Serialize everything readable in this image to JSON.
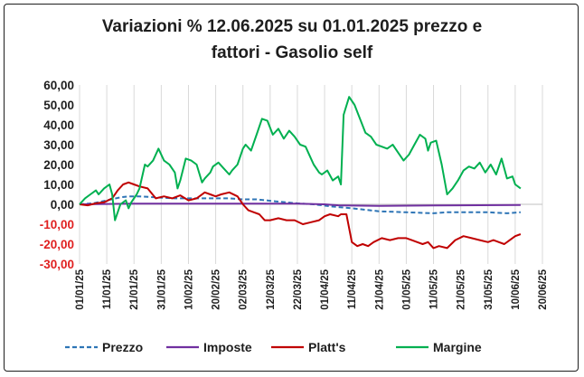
{
  "chart_data": {
    "type": "line",
    "title_line1": "Variazioni % 12.06.2025 su 01.01.2025 prezzo e",
    "title_line2": "fattori - Gasolio self",
    "ylim": [
      -30,
      60
    ],
    "yticks": [
      "60,00",
      "50,00",
      "40,00",
      "30,00",
      "20,00",
      "10,00",
      "0,00",
      "-10,00",
      "-20,00",
      "-30,00"
    ],
    "ytick_values": [
      60,
      50,
      40,
      30,
      20,
      10,
      0,
      -10,
      -20,
      -30
    ],
    "xlim": [
      0,
      170
    ],
    "xticks": [
      "01/01/25",
      "11/01/25",
      "21/01/25",
      "31/01/25",
      "10/02/25",
      "20/02/25",
      "02/03/25",
      "12/03/25",
      "22/03/25",
      "01/04/25",
      "11/04/25",
      "21/04/25",
      "01/05/25",
      "11/05/25",
      "21/05/25",
      "31/05/25",
      "10/06/25",
      "20/06/25"
    ],
    "xtick_days": [
      0,
      10,
      20,
      30,
      40,
      50,
      60,
      70,
      80,
      90,
      100,
      110,
      120,
      130,
      140,
      150,
      160,
      170
    ],
    "grid": "vertical",
    "legend_position": "bottom",
    "negative_tick_color": "#e02020",
    "series": [
      {
        "name": "Prezzo",
        "color": "#2e75b6",
        "style": "dashed",
        "x": [
          0,
          5,
          10,
          15,
          18,
          22,
          28,
          35,
          45,
          55,
          60,
          65,
          72,
          80,
          86,
          92,
          100,
          110,
          120,
          130,
          135,
          142,
          150,
          157,
          162
        ],
        "y": [
          0,
          0.5,
          2,
          3.5,
          4,
          4,
          3.5,
          3,
          3,
          3,
          2.5,
          2.5,
          1.5,
          0.5,
          0,
          -1,
          -2,
          -3.5,
          -4,
          -4.5,
          -4,
          -4,
          -4,
          -4.5,
          -4
        ]
      },
      {
        "name": "Imposte",
        "color": "#7030a0",
        "style": "solid",
        "x": [
          0,
          20,
          40,
          60,
          80,
          90,
          95,
          110,
          130,
          162
        ],
        "y": [
          0,
          0.3,
          0.3,
          0.3,
          0.3,
          0,
          -0.5,
          -0.8,
          -0.6,
          -0.3
        ]
      },
      {
        "name": "Platt's",
        "color": "#c00000",
        "style": "solid",
        "x": [
          0,
          3,
          6,
          9,
          12,
          14,
          16,
          18,
          20,
          22,
          25,
          28,
          31,
          34,
          37,
          40,
          43,
          46,
          48,
          50,
          52,
          55,
          58,
          60,
          62,
          64,
          66,
          68,
          70,
          73,
          76,
          79,
          82,
          85,
          88,
          90,
          92,
          95,
          96,
          98,
          100,
          102,
          104,
          106,
          108,
          111,
          114,
          117,
          120,
          122,
          124,
          126,
          128,
          130,
          132,
          135,
          138,
          141,
          144,
          147,
          150,
          152,
          154,
          156,
          158,
          160,
          162
        ],
        "y": [
          0,
          -0.5,
          0.5,
          1,
          3,
          7,
          10,
          11,
          10,
          9,
          8,
          3,
          4,
          3,
          4.5,
          2,
          3,
          6,
          5,
          4,
          5,
          6,
          4,
          0,
          -3,
          -4,
          -5,
          -8,
          -8,
          -7,
          -8,
          -8,
          -10,
          -9,
          -8,
          -6,
          -5,
          -6,
          -5,
          -5,
          -19,
          -21,
          -20,
          -21,
          -19,
          -17,
          -18,
          -17,
          -17,
          -18,
          -19,
          -20,
          -19,
          -22,
          -21,
          -22,
          -18,
          -16,
          -17,
          -18,
          -19,
          -18,
          -19,
          -20,
          -18,
          -16,
          -15
        ]
      },
      {
        "name": "Margine",
        "color": "#00b050",
        "style": "solid",
        "x": [
          0,
          2,
          4,
          6,
          7,
          9,
          11,
          12,
          13,
          15,
          17,
          18,
          19,
          21,
          22,
          24,
          25,
          27,
          29,
          31,
          33,
          35,
          36,
          37,
          39,
          41,
          43,
          45,
          46,
          48,
          49,
          51,
          53,
          55,
          56,
          58,
          60,
          61,
          63,
          65,
          67,
          69,
          71,
          73,
          75,
          77,
          79,
          81,
          83,
          85,
          86,
          88,
          89,
          91,
          93,
          95,
          96,
          97,
          99,
          101,
          103,
          105,
          107,
          109,
          111,
          113,
          115,
          117,
          119,
          121,
          123,
          125,
          127,
          128,
          129,
          131,
          133,
          135,
          137,
          139,
          141,
          143,
          145,
          147,
          149,
          151,
          153,
          155,
          157,
          159,
          160,
          162
        ],
        "y": [
          0,
          3,
          5,
          7,
          5,
          8,
          10,
          5,
          -8,
          0,
          2,
          -2,
          1,
          5,
          8,
          20,
          19,
          22,
          28,
          22,
          20,
          16,
          8,
          12,
          23,
          22,
          20,
          11,
          13,
          16,
          19,
          21,
          18,
          15,
          17,
          20,
          28,
          30,
          27,
          35,
          43,
          42,
          35,
          38,
          33,
          37,
          34,
          30,
          29,
          23,
          20,
          16,
          15,
          17,
          12,
          14,
          10,
          45,
          54,
          50,
          43,
          36,
          34,
          30,
          29,
          28,
          30,
          26,
          22,
          25,
          30,
          35,
          33,
          27,
          31,
          32,
          20,
          5,
          8,
          12,
          17,
          19,
          18,
          21,
          16,
          20,
          15,
          23,
          13,
          14,
          10,
          8
        ]
      }
    ]
  }
}
